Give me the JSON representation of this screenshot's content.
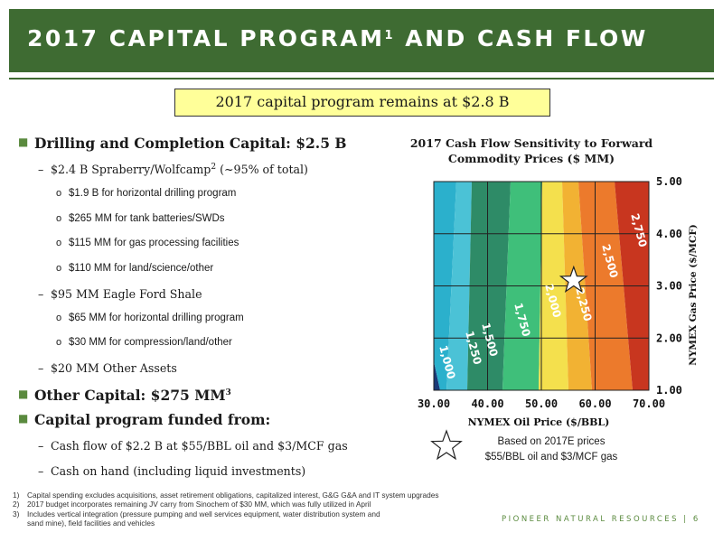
{
  "header": {
    "title": "2017 CAPITAL PROGRAM",
    "title_sup": "1",
    "title_tail": " AND CASH FLOW"
  },
  "callout": "2017 capital program remains at $2.8 B",
  "bullets": [
    {
      "level": 1,
      "text": "Drilling and Completion Capital: $2.5 B"
    },
    {
      "level": 2,
      "text": "$2.4 B Spraberry/Wolfcamp",
      "sup": "2",
      "tail": " (~95% of total)"
    },
    {
      "level": 3,
      "text": "$1.9 B for horizontal drilling program"
    },
    {
      "level": 3,
      "text": "$265 MM for tank batteries/SWDs"
    },
    {
      "level": 3,
      "text": "$115 MM for gas processing facilities"
    },
    {
      "level": 3,
      "text": "$110 MM for land/science/other"
    },
    {
      "level": 2,
      "text": "$95 MM Eagle Ford Shale"
    },
    {
      "level": 3,
      "text": "$65 MM for horizontal drilling program"
    },
    {
      "level": 3,
      "text": "$30 MM for compression/land/other"
    },
    {
      "level": 2,
      "text": "$20 MM Other Assets"
    },
    {
      "level": 1,
      "text": "Other Capital: $275 MM",
      "sup": "3"
    },
    {
      "level": 1,
      "text": "Capital program funded from:"
    },
    {
      "level": 2,
      "text": "Cash flow of $2.2 B at $55/BBL oil and $3/MCF gas"
    },
    {
      "level": 2,
      "text": "Cash on hand (including liquid investments)"
    }
  ],
  "markers": {
    "level1": "■",
    "level2": "–",
    "level3": "o"
  },
  "chart_data": {
    "type": "contour",
    "title": "2017 Cash Flow Sensitivity to Forward Commodity Prices ($ MM)",
    "xlabel": "NYMEX Oil Price ($/BBL)",
    "ylabel": "NYMEX Gas Price ($/MCF)",
    "x_ticks": [
      "30.00",
      "40.00",
      "50.00",
      "60.00",
      "70.00"
    ],
    "y_ticks": [
      "1.00",
      "2.00",
      "3.00",
      "4.00",
      "5.00"
    ],
    "xlim": [
      30,
      70
    ],
    "ylim": [
      1,
      5
    ],
    "contour_labels": [
      "1,000",
      "1,250",
      "1,500",
      "1,750",
      "2,000",
      "2,250",
      "2,500",
      "2,750"
    ],
    "bands": [
      {
        "range": "<1,000",
        "color": "#1b3a78"
      },
      {
        "range": "1,000-1,250",
        "color": "#2bb0cc"
      },
      {
        "range": "1,250-1,500",
        "color": "#4bc2d6"
      },
      {
        "range": "1,500-1,750",
        "color": "#2e8b67"
      },
      {
        "range": "1,750-2,000",
        "color": "#3fbf7a"
      },
      {
        "range": "2,000-2,250",
        "color": "#f4e04d"
      },
      {
        "range": "2,250-2,500",
        "color": "#f2b233"
      },
      {
        "range": "2,500-2,750",
        "color": "#ec7a2c"
      },
      {
        "range": ">2,750",
        "color": "#c8361f"
      }
    ],
    "grid": true,
    "marker": {
      "x": 55,
      "y": 3,
      "shape": "star"
    }
  },
  "star_note": {
    "line1": "Based on 2017E prices",
    "line2": "$55/BBL oil and $3/MCF gas"
  },
  "footnotes": [
    {
      "num": "1)",
      "text": "Capital spending excludes acquisitions, asset retirement obligations, capitalized interest, G&G G&A and IT system upgrades"
    },
    {
      "num": "2)",
      "text": "2017 budget incorporates remaining JV carry from Sinochem of $30 MM, which was fully utilized in April"
    },
    {
      "num": "3)",
      "text": "Includes vertical integration (pressure pumping and well services equipment, water distribution system and"
    },
    {
      "num": "",
      "text": "sand mine), field facilities and vehicles"
    }
  ],
  "brand": {
    "name": "PIONEER NATURAL RESOURCES",
    "separator": "|",
    "page": "6"
  }
}
